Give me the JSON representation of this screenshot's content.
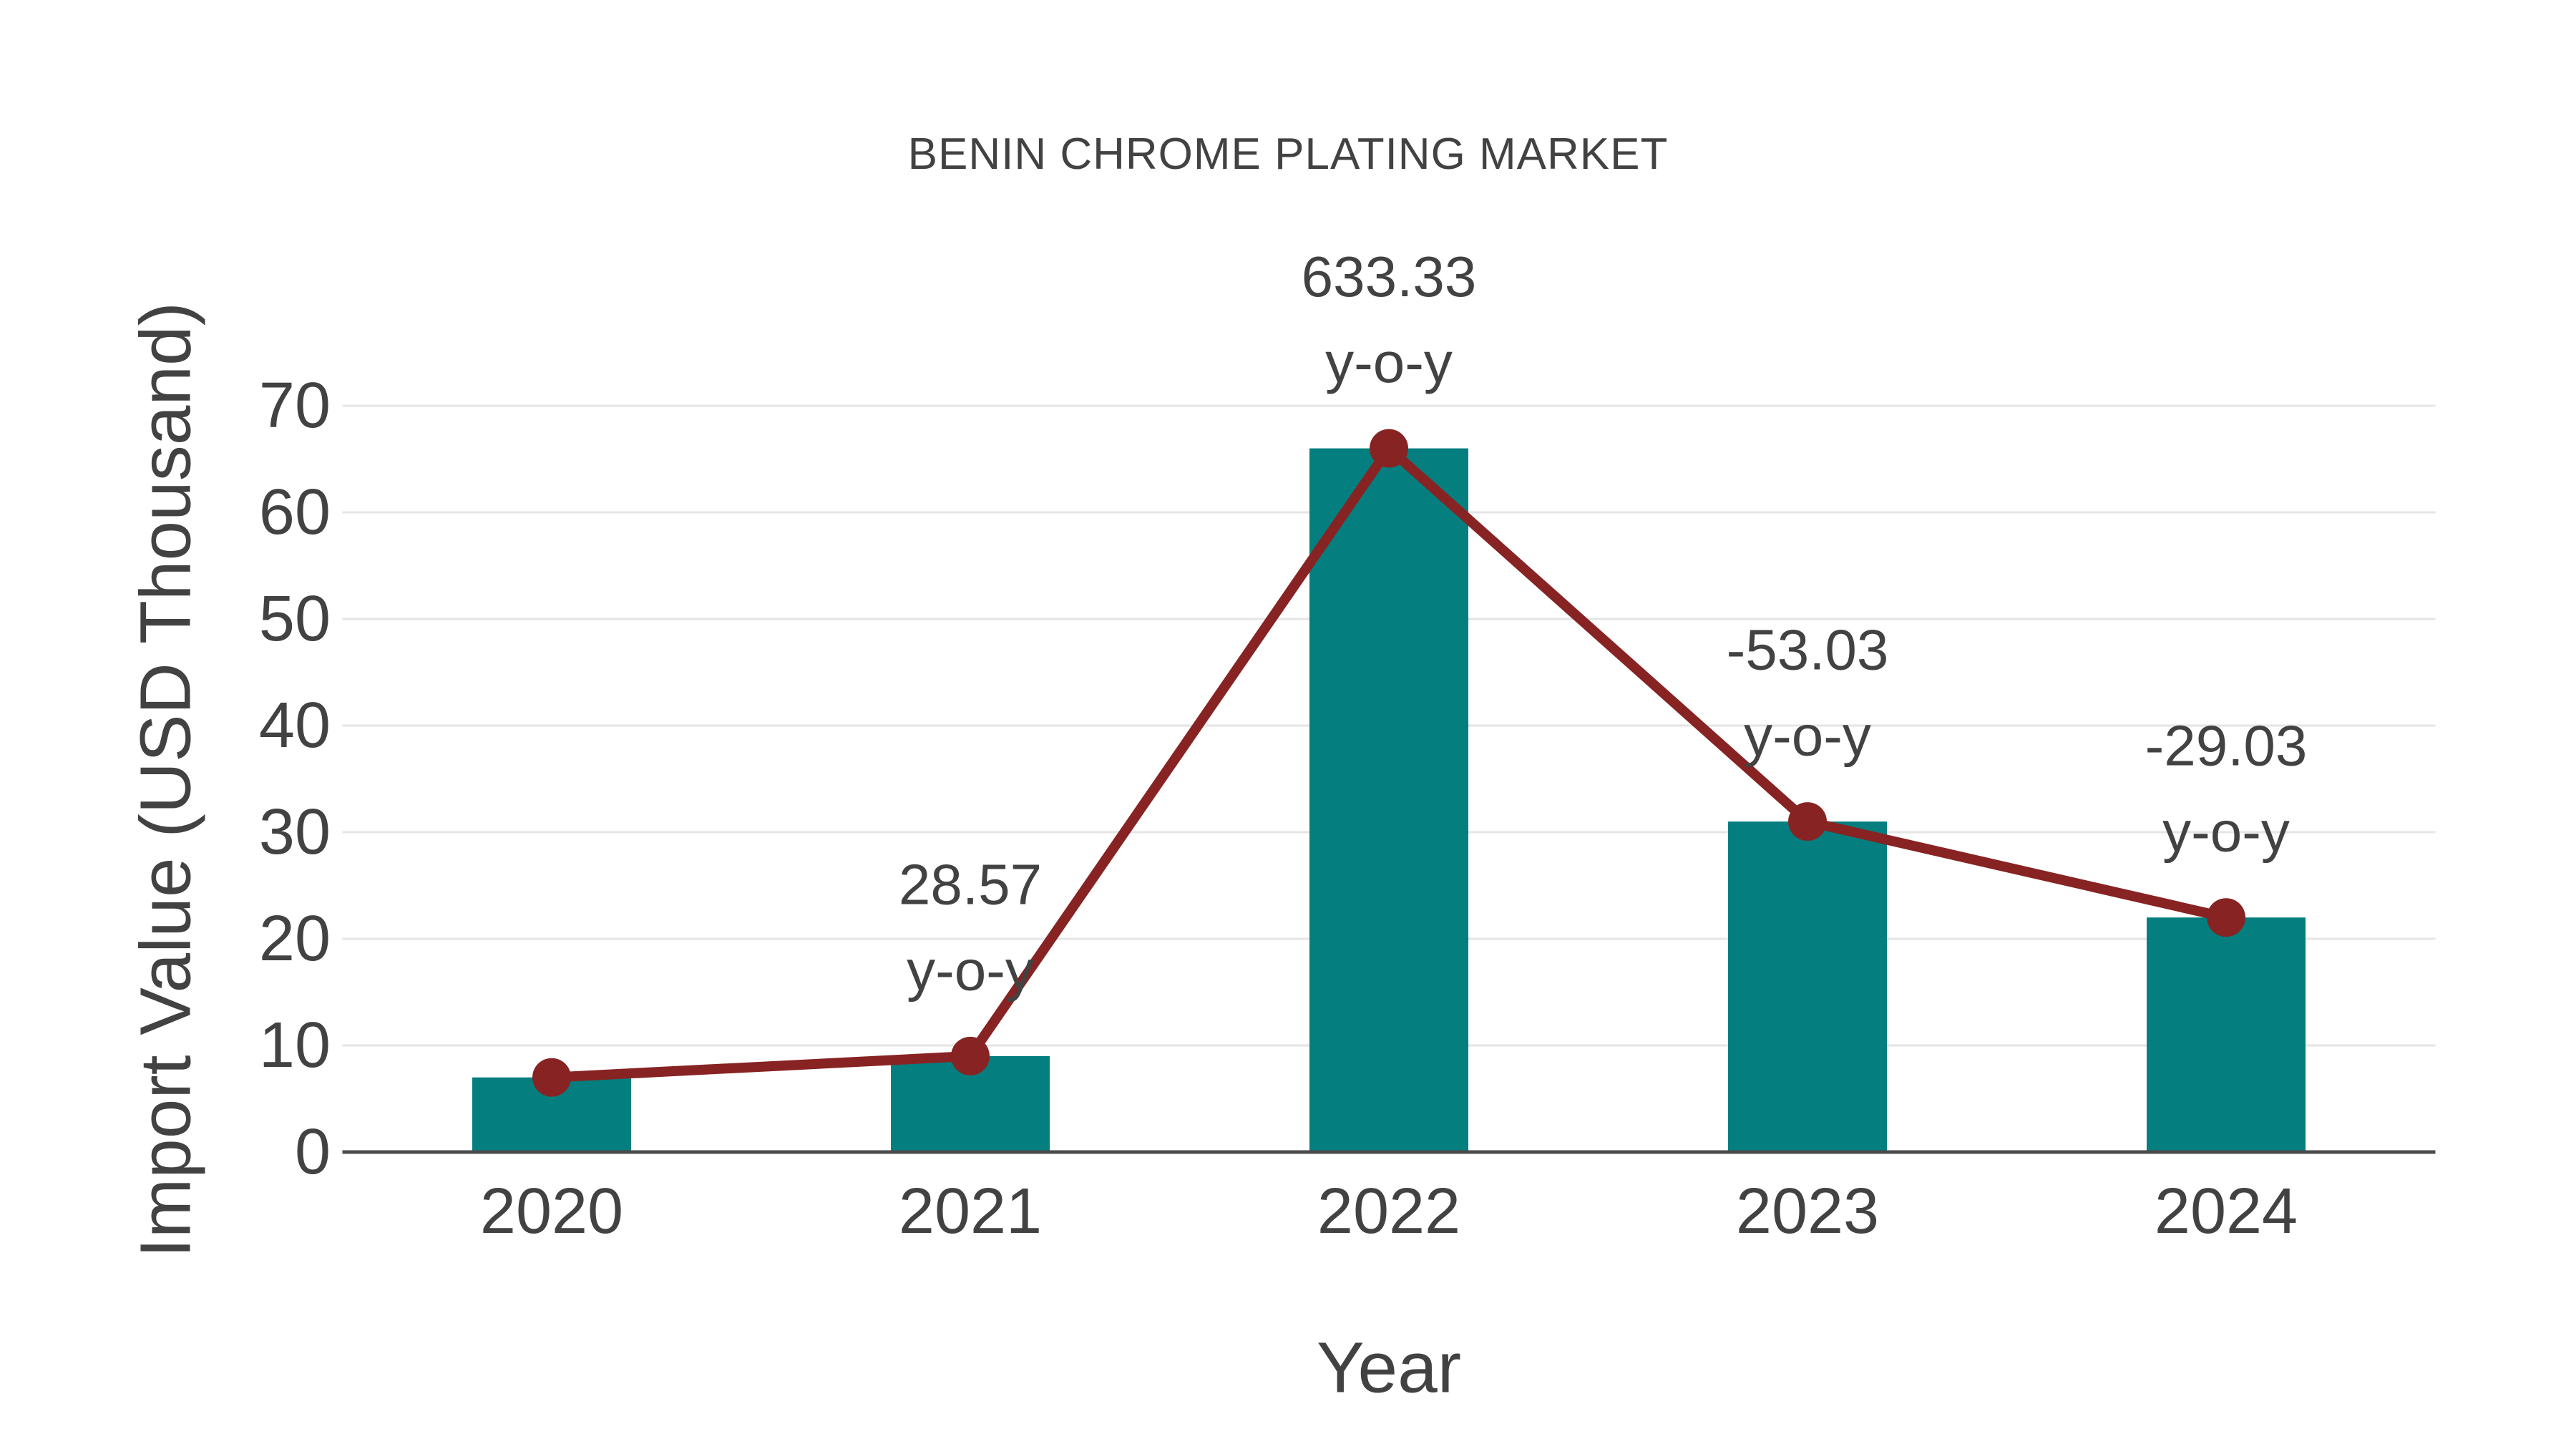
{
  "chart_data": {
    "type": "bar",
    "title": "BENIN CHROME PLATING MARKET",
    "xlabel": "Year",
    "ylabel": "Import Value (USD Thousand)",
    "categories": [
      "2020",
      "2021",
      "2022",
      "2023",
      "2024"
    ],
    "series": [
      {
        "name": "Import Value bars",
        "type": "bar",
        "values": [
          7,
          9,
          66,
          31,
          22
        ]
      },
      {
        "name": "Import Value trend",
        "type": "line",
        "values": [
          7,
          9,
          66,
          31,
          22
        ]
      }
    ],
    "annotations": [
      {
        "category": "2021",
        "value_label": "28.57",
        "sub_label": "y-o-y"
      },
      {
        "category": "2022",
        "value_label": "633.33",
        "sub_label": "y-o-y"
      },
      {
        "category": "2023",
        "value_label": "-53.03",
        "sub_label": "y-o-y"
      },
      {
        "category": "2024",
        "value_label": "-29.03",
        "sub_label": "y-o-y"
      }
    ],
    "yticks": [
      0,
      10,
      20,
      30,
      40,
      50,
      60,
      70
    ],
    "ylim": [
      0,
      73
    ],
    "grid": true,
    "legend_position": "none",
    "colors": {
      "bar": "#047E7E",
      "line": "#882323",
      "marker": "#882323",
      "grid": "#E5E5E5",
      "axis_line": "#4A4A4A",
      "text": "#424242"
    }
  }
}
